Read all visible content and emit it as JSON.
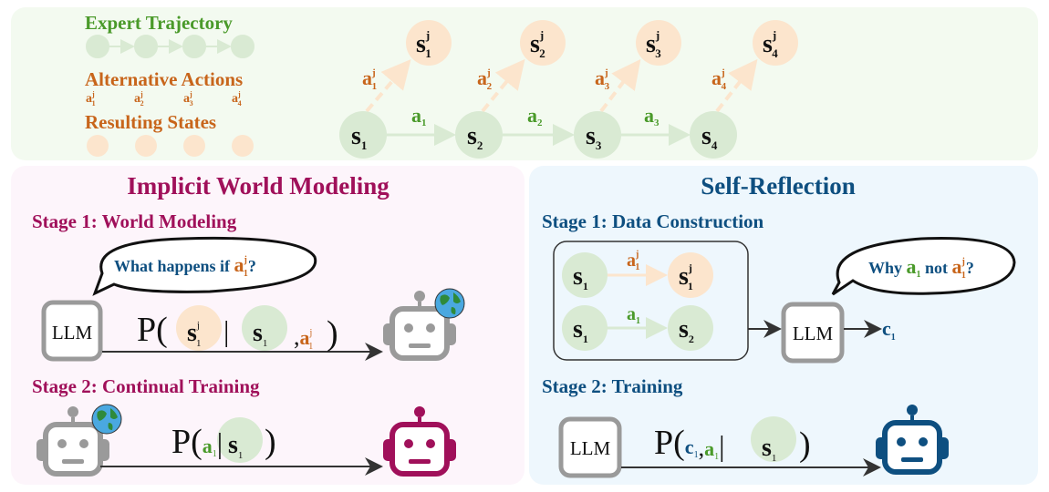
{
  "colors": {
    "green_text": "#4a9a2a",
    "orange_text": "#c8651b",
    "magenta": "#a0105a",
    "blue": "#0e4f80",
    "green_fill": "#d9ead3",
    "orange_fill": "#fce5cd",
    "gray_robot": "#9a9a9a"
  },
  "legend": {
    "expert_trajectory": "Expert Trajectory",
    "alternative_actions": "Alternative Actions",
    "alt_action_subs": [
      "1",
      "2",
      "3",
      "4"
    ],
    "resulting_states": "Resulting States"
  },
  "sym": {
    "s": "s",
    "a": "a",
    "c": "c",
    "j": "j",
    "P": "P",
    "one": "1",
    "two": "2",
    "three": "3",
    "four": "4",
    "bar": "|",
    "comma": ",",
    "lp": "(",
    "rp": ")",
    "q": "?"
  },
  "left": {
    "title": "Implicit World Modeling",
    "stage1": "Stage 1: World Modeling",
    "bubble": "What happens if ",
    "stage2": "Stage 2: Continual Training",
    "llm": "LLM"
  },
  "right": {
    "title": "Self-Reflection",
    "stage1": "Stage 1: Data Construction",
    "bubble_why": "Why ",
    "bubble_not": " not ",
    "stage2": "Stage 2: Training",
    "llm": "LLM"
  },
  "icons": [
    "robot-icon",
    "globe-icon",
    "speech-bubble-icon"
  ]
}
